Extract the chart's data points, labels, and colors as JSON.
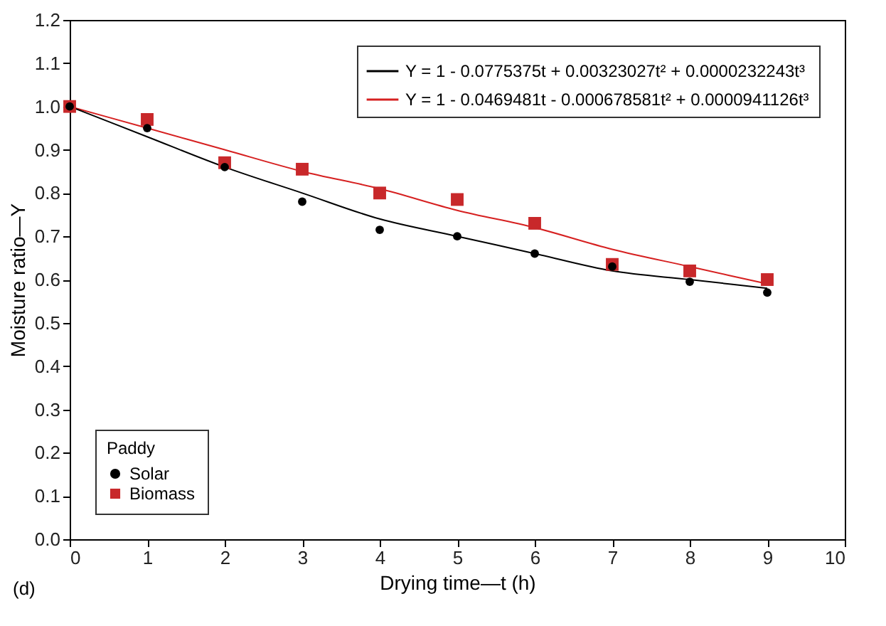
{
  "chart_data": {
    "type": "scatter",
    "xlabel": "Drying time—t (h)",
    "ylabel": "Moisture ratio—Y",
    "legend_title": "Paddy",
    "legend": "bottom left",
    "annotations": [
      "(d)"
    ],
    "x": [
      0,
      1,
      2,
      3,
      4,
      5,
      6,
      7,
      8,
      9
    ],
    "xlim": [
      0,
      10
    ],
    "xticks": [
      0,
      1,
      2,
      3,
      4,
      5,
      6,
      7,
      8,
      9,
      10
    ],
    "ylim": [
      0,
      1.2
    ],
    "yticks": [
      {
        "value": 0,
        "label": "0.0"
      },
      0.1,
      0.2,
      0.3,
      0.4,
      0.5,
      0.6,
      0.7,
      0.8,
      0.9,
      {
        "value": 1,
        "label": "1.0"
      },
      1.1,
      1.2
    ],
    "series": [
      {
        "name": "Y = 1 - 0.0775375t + 0.00323027t² + 0.0000232243t³",
        "type": "line",
        "color": "#000000",
        "values": [
          1.0,
          0.93,
          0.86,
          0.8,
          0.74,
          0.7,
          0.66,
          0.62,
          0.6,
          0.58
        ]
      },
      {
        "name": "Y = 1 - 0.0469481t - 0.000678581t² + 0.0000941126t³",
        "type": "line",
        "color": "#d62020",
        "values": [
          1.0,
          0.95,
          0.9,
          0.85,
          0.81,
          0.76,
          0.72,
          0.67,
          0.63,
          0.59
        ]
      },
      {
        "name": "Solar",
        "type": "scatter",
        "marker": "circle",
        "color": "#000000",
        "values": [
          1.0,
          0.95,
          0.86,
          0.78,
          0.715,
          0.7,
          0.66,
          0.63,
          0.595,
          0.57
        ]
      },
      {
        "name": "Biomass",
        "type": "scatter",
        "marker": "square",
        "color": "#c8282a",
        "values": [
          1.0,
          0.97,
          0.87,
          0.855,
          0.8,
          0.785,
          0.73,
          0.635,
          0.62,
          0.6
        ]
      }
    ]
  }
}
